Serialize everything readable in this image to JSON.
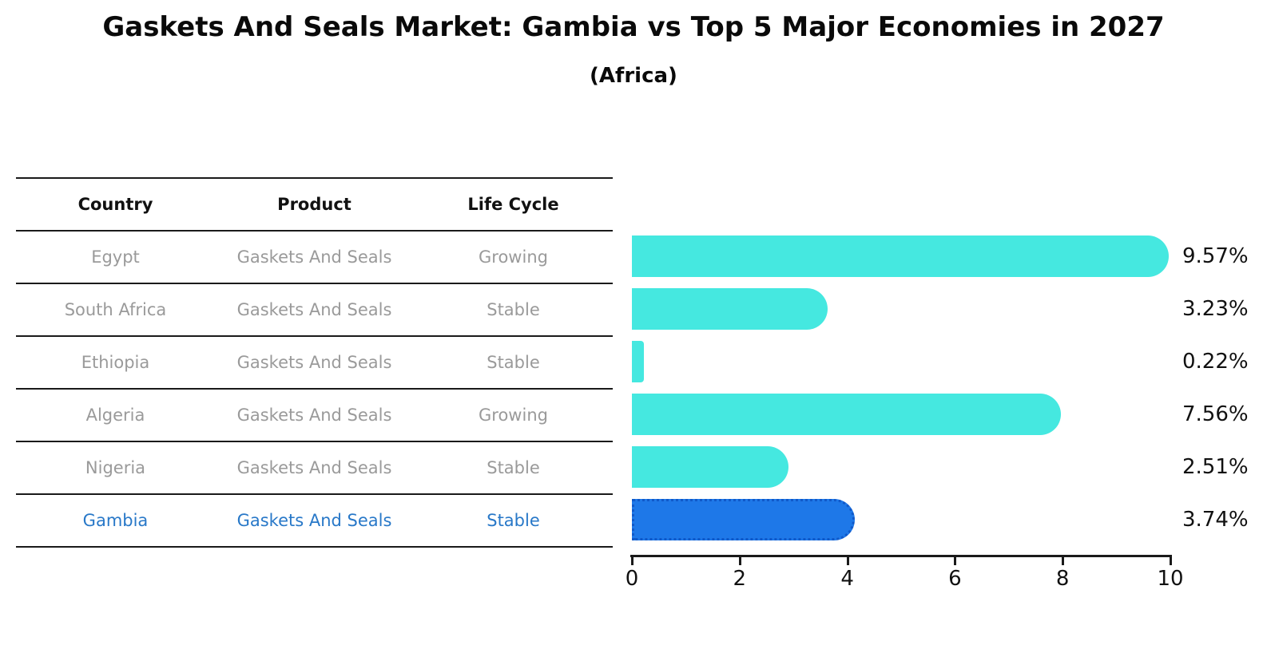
{
  "title": "Gaskets And Seals Market: Gambia vs Top 5 Major Economies in 2027",
  "subtitle": "(Africa)",
  "table": {
    "headers": {
      "country": "Country",
      "product": "Product",
      "life_cycle": "Life Cycle"
    },
    "rows": [
      {
        "country": "Egypt",
        "product": "Gaskets And Seals",
        "life_cycle": "Growing",
        "highlight": false
      },
      {
        "country": "South Africa",
        "product": "Gaskets And Seals",
        "life_cycle": "Stable",
        "highlight": false
      },
      {
        "country": "Ethiopia",
        "product": "Gaskets And Seals",
        "life_cycle": "Stable",
        "highlight": false
      },
      {
        "country": "Algeria",
        "product": "Gaskets And Seals",
        "life_cycle": "Growing",
        "highlight": false
      },
      {
        "country": "Nigeria",
        "product": "Gaskets And Seals",
        "life_cycle": "Stable",
        "highlight": false
      },
      {
        "country": "Gambia",
        "product": "Gaskets And Seals",
        "life_cycle": "Stable",
        "highlight": true
      }
    ]
  },
  "chart_data": {
    "type": "bar",
    "orientation": "horizontal",
    "title": "Gaskets And Seals Market: Gambia vs Top 5 Major Economies in 2027",
    "subtitle": "(Africa)",
    "categories": [
      "Egypt",
      "South Africa",
      "Ethiopia",
      "Algeria",
      "Nigeria",
      "Gambia"
    ],
    "values": [
      9.57,
      3.23,
      0.22,
      7.56,
      2.51,
      3.74
    ],
    "labels": [
      "9.57%",
      "3.23%",
      "0.22%",
      "7.56%",
      "2.51%",
      "3.74%"
    ],
    "xlim": [
      0,
      10
    ],
    "x_ticks": [
      0,
      2,
      4,
      6,
      8,
      10
    ],
    "x_tick_labels": [
      "0",
      "2",
      "4",
      "6",
      "8",
      "10"
    ],
    "grid": false,
    "legend": false,
    "highlight_index": 5
  },
  "colors": {
    "bar_cyan": "#45E8E0",
    "bar_blue": "#1E78E8",
    "bar_blue_border": "#1059C9",
    "row_text_gray": "#9a9a9a",
    "highlight_text_blue": "#2878C8",
    "ink": "#111111"
  }
}
